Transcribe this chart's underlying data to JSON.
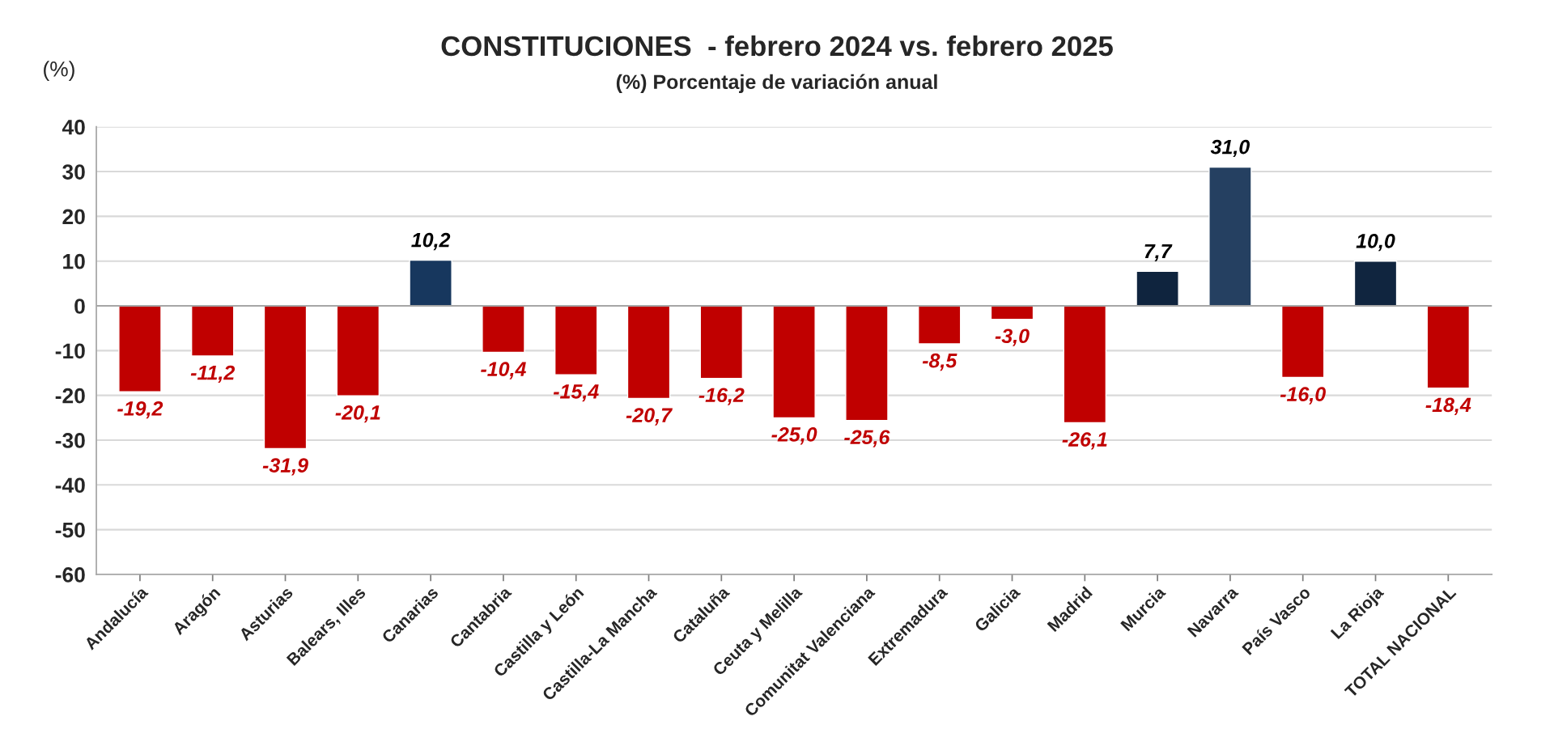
{
  "chart_data": {
    "type": "bar",
    "title": "CONSTITUCIONES  - febrero 2024 vs. febrero 2025",
    "subtitle": "(%) Porcentaje de variación anual",
    "ylabel": "(%)",
    "categories": [
      "Andalucía",
      "Aragón",
      "Asturias",
      "Balears, Illes",
      "Canarias",
      "Cantabria",
      "Castilla y León",
      "Castilla-La Mancha",
      "Cataluña",
      "Ceuta y Melilla",
      "Comunitat Valenciana",
      "Extremadura",
      "Galicia",
      "Madrid",
      "Murcia",
      "Navarra",
      "País Vasco",
      "La Rioja",
      "TOTAL NACIONAL"
    ],
    "values": [
      -19.2,
      -11.2,
      -31.9,
      -20.1,
      10.2,
      -10.4,
      -15.4,
      -20.7,
      -16.2,
      -25.0,
      -25.6,
      -8.5,
      -3.0,
      -26.1,
      7.7,
      31.0,
      -16.0,
      10.0,
      -18.4
    ],
    "value_labels": [
      "-19,2",
      "-11,2",
      "-31,9",
      "-20,1",
      "10,2",
      "-10,4",
      "-15,4",
      "-20,7",
      "-16,2",
      "-25,0",
      "-25,6",
      "-8,5",
      "-3,0",
      "-26,1",
      "7,7",
      "31,0",
      "-16,0",
      "10,0",
      "-18,4"
    ],
    "colors": [
      "#c00000",
      "#c00000",
      "#c00000",
      "#c00000",
      "#17375e",
      "#c00000",
      "#c00000",
      "#c00000",
      "#c00000",
      "#c00000",
      "#c00000",
      "#c00000",
      "#c00000",
      "#c00000",
      "#0f243e",
      "#254061",
      "#c00000",
      "#10253f",
      "#c00000"
    ],
    "ylim": [
      -60,
      40
    ],
    "yticks": [
      -60,
      -50,
      -40,
      -30,
      -20,
      -10,
      0,
      10,
      20,
      30,
      40
    ],
    "grid": "y",
    "legend": false
  }
}
